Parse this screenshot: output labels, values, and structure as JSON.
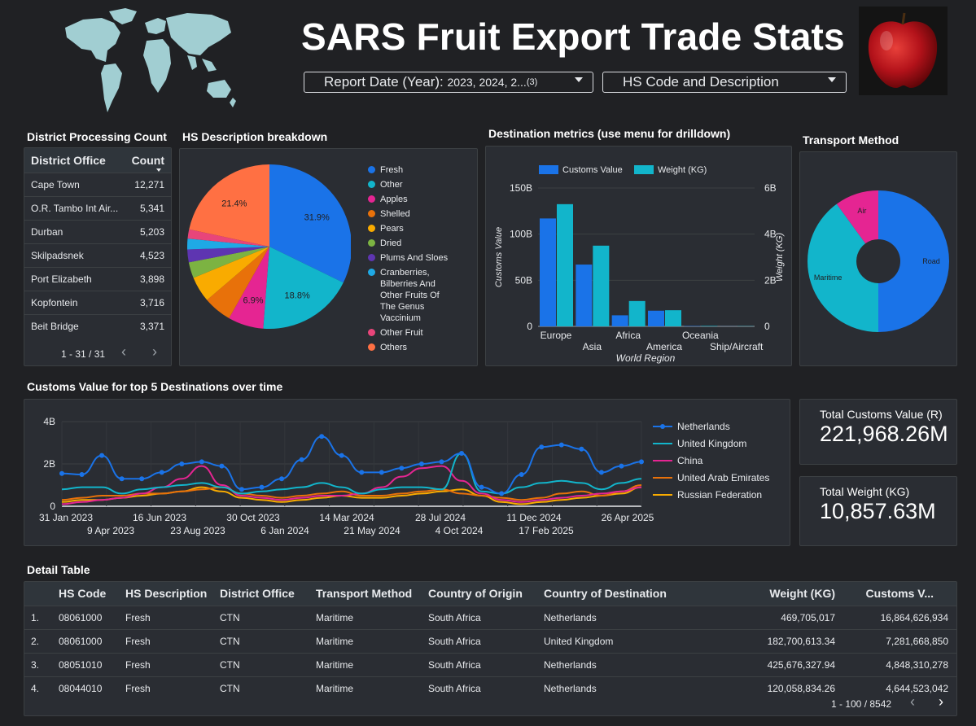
{
  "header": {
    "title": "SARS Fruit Export Trade Stats",
    "filter_year_label": "Report Date (Year):",
    "filter_year_value": "2023, 2024, 2...",
    "filter_year_count": "(3)",
    "filter_hs_label": "HS Code and Description",
    "map_icon": "world-map-icon",
    "apple_icon": "red-apple-image"
  },
  "district": {
    "title": "District Processing Count",
    "col_office": "District Office",
    "col_count": "Count",
    "rows": [
      {
        "office": "Cape Town",
        "count": "12,271"
      },
      {
        "office": "O.R. Tambo Int Air...",
        "count": "5,341"
      },
      {
        "office": "Durban",
        "count": "5,203"
      },
      {
        "office": "Skilpadsnek",
        "count": "4,523"
      },
      {
        "office": "Port Elizabeth",
        "count": "3,898"
      },
      {
        "office": "Kopfontein",
        "count": "3,716"
      },
      {
        "office": "Beit Bridge",
        "count": "3,371"
      }
    ],
    "pager": "1 - 31 / 31"
  },
  "hs": {
    "title": "HS Description breakdown",
    "legend": [
      {
        "label": "Fresh",
        "color": "#1a73e8"
      },
      {
        "label": "Other",
        "color": "#12b5cb"
      },
      {
        "label": "Apples",
        "color": "#e52592"
      },
      {
        "label": "Shelled",
        "color": "#e8710a"
      },
      {
        "label": "Pears",
        "color": "#f9ab00"
      },
      {
        "label": "Dried",
        "color": "#7cb342"
      },
      {
        "label": "Plums And Sloes",
        "color": "#5e35b1"
      },
      {
        "label": "Cranberries, Bilberries And Other Fruits Of The Genus Vaccinium",
        "color": "#1fa9e5"
      },
      {
        "label": "Other Fruit",
        "color": "#e8457a"
      },
      {
        "label": "Others",
        "color": "#ff7043"
      }
    ]
  },
  "destination": {
    "title": "Destination metrics (use menu for drilldown)",
    "legend_customs": "Customs Value",
    "legend_weight": "Weight (KG)",
    "ylabel_left": "Customs Value",
    "ylabel_right": "Weight (KG)",
    "xlabel": "World Region"
  },
  "transport": {
    "title": "Transport Method"
  },
  "timeline": {
    "title": "Customs Value for top 5 Destinations over time"
  },
  "kpi": {
    "customs_label": "Total Customs Value (R)",
    "customs_value": "221,968.26M",
    "weight_label": "Total Weight (KG)",
    "weight_value": "10,857.63M"
  },
  "detail": {
    "title": "Detail Table",
    "columns": [
      "HS Code",
      "HS Description",
      "District Office",
      "Transport Method",
      "Country of Origin",
      "Country of Destination",
      "Weight (KG)",
      "Customs V..."
    ],
    "rows": [
      [
        "1.",
        "08061000",
        "Fresh",
        "CTN",
        "Maritime",
        "South Africa",
        "Netherlands",
        "469,705,017",
        "16,864,626,934"
      ],
      [
        "2.",
        "08061000",
        "Fresh",
        "CTN",
        "Maritime",
        "South Africa",
        "United Kingdom",
        "182,700,613.34",
        "7,281,668,850"
      ],
      [
        "3.",
        "08051010",
        "Fresh",
        "CTN",
        "Maritime",
        "South Africa",
        "Netherlands",
        "425,676,327.94",
        "4,848,310,278"
      ],
      [
        "4.",
        "08044010",
        "Fresh",
        "CTN",
        "Maritime",
        "South Africa",
        "Netherlands",
        "120,058,834.26",
        "4,644,523,042"
      ]
    ],
    "pager": "1 - 100 / 8542"
  },
  "chart_data": [
    {
      "type": "pie",
      "title": "HS Description breakdown",
      "categories": [
        "Fresh",
        "Other",
        "Apples",
        "Shelled",
        "Pears",
        "Dried",
        "Plums And Sloes",
        "Cranberries, Bilberries And Other Fruits Of The Genus Vaccinium",
        "Other Fruit",
        "Others"
      ],
      "values": [
        31.9,
        18.8,
        6.9,
        5.5,
        5.0,
        3.1,
        2.5,
        2.1,
        1.8,
        21.4
      ],
      "data_labels": [
        "31.9%",
        "18.8%",
        "6.9%",
        "",
        "",
        "",
        "",
        "",
        "",
        "21.4%"
      ],
      "colors": [
        "#1a73e8",
        "#12b5cb",
        "#e52592",
        "#e8710a",
        "#f9ab00",
        "#7cb342",
        "#5e35b1",
        "#1fa9e5",
        "#e8457a",
        "#ff7043"
      ]
    },
    {
      "type": "bar",
      "title": "Destination metrics (use menu for drilldown)",
      "categories": [
        "Europe",
        "Asia",
        "Africa",
        "America",
        "Oceania",
        "Ship/Aircraft"
      ],
      "series": [
        {
          "name": "Customs Value",
          "values": [
            117,
            67,
            12,
            17,
            0.4,
            0.1
          ],
          "axis": "left",
          "color": "#1a73e8"
        },
        {
          "name": "Weight (KG)",
          "values": [
            5.3,
            3.5,
            1.1,
            0.7,
            0.02,
            0.01
          ],
          "axis": "right",
          "color": "#12b5cb"
        }
      ],
      "xlabel": "World Region",
      "ylabel": "Customs Value",
      "ylabel_right": "Weight (KG)",
      "ylim": [
        0,
        150
      ],
      "ylim_right": [
        0,
        6
      ],
      "yticks": [
        "0",
        "50B",
        "100B",
        "150B"
      ],
      "yticks_right": [
        "0",
        "2B",
        "4B",
        "6B"
      ]
    },
    {
      "type": "pie",
      "title": "Transport Method",
      "categories": [
        "Road",
        "Maritime",
        "Air"
      ],
      "values": [
        50,
        40,
        10
      ],
      "colors": [
        "#1a73e8",
        "#12b5cb",
        "#e52592"
      ]
    },
    {
      "type": "line",
      "title": "Customs Value for top 5 Destinations over time",
      "x_ticks_top": [
        "31 Jan 2023",
        "16 Jun 2023",
        "30 Oct 2023",
        "14 Mar 2024",
        "28 Jul 2024",
        "11 Dec 2024",
        "26 Apr 2025"
      ],
      "x_ticks_bottom": [
        "9 Apr 2023",
        "23 Aug 2023",
        "6 Jan 2024",
        "21 May 2024",
        "4 Oct 2024",
        "17 Feb 2025"
      ],
      "yticks": [
        "0",
        "2B",
        "4B"
      ],
      "ylim": [
        0,
        4
      ],
      "series": [
        {
          "name": "Netherlands",
          "color": "#1a73e8",
          "values": [
            1.55,
            1.5,
            2.4,
            1.3,
            1.3,
            1.6,
            2.0,
            2.1,
            1.9,
            0.8,
            0.9,
            1.3,
            2.2,
            3.3,
            2.4,
            1.6,
            1.6,
            1.8,
            2.0,
            2.1,
            2.5,
            0.9,
            0.6,
            1.5,
            2.8,
            2.9,
            2.7,
            1.6,
            1.9,
            2.1
          ]
        },
        {
          "name": "United Kingdom",
          "color": "#12b5cb",
          "values": [
            0.8,
            0.9,
            0.9,
            0.6,
            0.8,
            0.9,
            1.0,
            1.1,
            0.9,
            0.6,
            0.7,
            0.8,
            0.9,
            1.1,
            0.9,
            0.6,
            0.8,
            0.9,
            0.9,
            0.8,
            2.5,
            0.7,
            0.6,
            0.9,
            1.1,
            1.2,
            1.1,
            0.8,
            1.1,
            1.3
          ]
        },
        {
          "name": "China",
          "color": "#e52592",
          "values": [
            0.1,
            0.2,
            0.3,
            0.4,
            0.6,
            0.9,
            1.3,
            1.9,
            1.0,
            0.5,
            0.4,
            0.3,
            0.4,
            0.5,
            0.5,
            0.6,
            0.9,
            1.4,
            1.8,
            1.9,
            1.2,
            0.6,
            0.3,
            0.2,
            0.3,
            0.4,
            0.5,
            0.6,
            0.7,
            0.9
          ]
        },
        {
          "name": "United Arab Emirates",
          "color": "#e8710a",
          "values": [
            0.3,
            0.4,
            0.5,
            0.5,
            0.6,
            0.6,
            0.7,
            0.8,
            0.9,
            0.6,
            0.5,
            0.4,
            0.5,
            0.6,
            0.7,
            0.5,
            0.5,
            0.6,
            0.7,
            0.8,
            0.6,
            0.5,
            0.4,
            0.3,
            0.4,
            0.6,
            0.7,
            0.5,
            0.7,
            1.0
          ]
        },
        {
          "name": "Russian Federation",
          "color": "#f9ab00",
          "values": [
            0.2,
            0.3,
            0.3,
            0.4,
            0.5,
            0.6,
            0.7,
            0.9,
            0.7,
            0.4,
            0.3,
            0.2,
            0.3,
            0.4,
            0.5,
            0.4,
            0.4,
            0.5,
            0.6,
            0.7,
            0.8,
            0.5,
            0.2,
            0.1,
            0.2,
            0.3,
            0.4,
            0.5,
            0.6,
            0.9
          ]
        }
      ]
    }
  ]
}
